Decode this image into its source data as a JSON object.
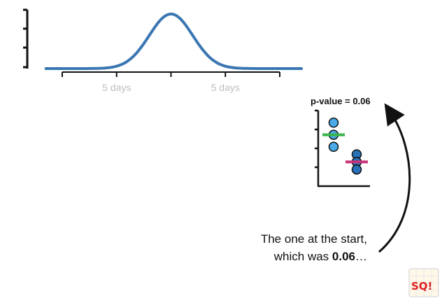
{
  "chart_data": [
    {
      "type": "line",
      "title": "",
      "xlabel": "",
      "ylabel": "",
      "x_ticks": [
        {
          "x": 0,
          "label": ""
        },
        {
          "x": 5,
          "label": "5 days"
        },
        {
          "x": 10,
          "label": ""
        },
        {
          "x": 15,
          "label": "5 days"
        },
        {
          "x": 20,
          "label": ""
        }
      ],
      "xlim": [
        -1.5,
        22
      ],
      "curve": {
        "mean": 10,
        "sd": 2.0
      },
      "color": "#3a76b2"
    },
    {
      "type": "scatter",
      "title": "p-value = 0.06",
      "series": [
        {
          "values": [
            4.2,
            3.4,
            2.6
          ],
          "mean": 3.4,
          "point_color": "#4aa9e8",
          "mean_color": "#39b54a"
        },
        {
          "values": [
            2.1,
            1.6,
            1.1
          ],
          "mean": 1.6,
          "point_color": "#2a72b8",
          "mean_color": "#c8327a"
        }
      ],
      "ylim": [
        0,
        5
      ]
    }
  ],
  "caption": {
    "line1": "The one at the start,",
    "line2_prefix": "which was ",
    "line2_bold": "0.06",
    "line2_suffix": "…"
  },
  "logo": {
    "text": "SQ!"
  }
}
